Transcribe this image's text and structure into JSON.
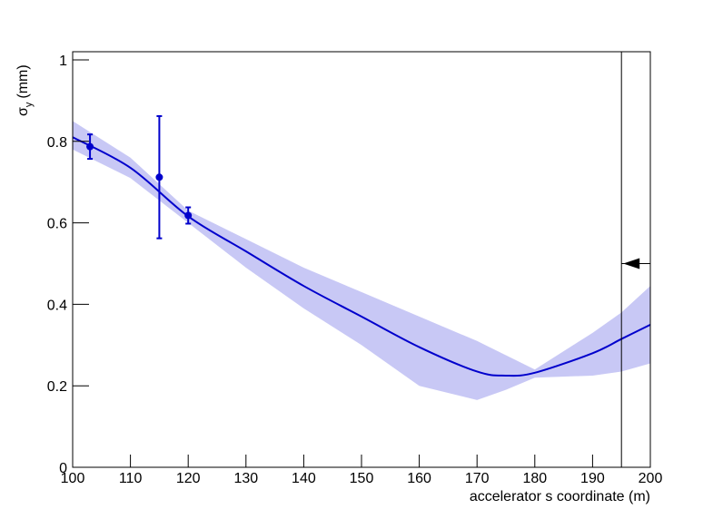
{
  "chart_data": {
    "type": "line",
    "x_label": "accelerator s coordinate (m)",
    "y_label": {
      "symbol": "σ",
      "subscript": "y",
      "unit": "(mm)"
    },
    "xlim": [
      100,
      200
    ],
    "ylim": [
      0,
      1.02
    ],
    "xticks": [
      100,
      110,
      120,
      130,
      140,
      150,
      160,
      170,
      180,
      190,
      200
    ],
    "yticks": [
      0,
      0.2,
      0.4,
      0.6,
      0.8,
      1
    ],
    "fit": {
      "color": "#0000cc",
      "band_color": "#c8c8f5",
      "x": [
        100,
        110,
        120,
        130,
        140,
        150,
        160,
        170,
        175,
        180,
        190,
        195,
        200
      ],
      "values": [
        0.81,
        0.735,
        0.616,
        0.53,
        0.445,
        0.37,
        0.295,
        0.235,
        0.225,
        0.232,
        0.28,
        0.315,
        0.35
      ],
      "upper": [
        0.85,
        0.76,
        0.63,
        0.56,
        0.49,
        0.43,
        0.37,
        0.31,
        0.275,
        0.24,
        0.33,
        0.38,
        0.445
      ],
      "lower": [
        0.78,
        0.71,
        0.6,
        0.49,
        0.39,
        0.3,
        0.2,
        0.165,
        0.19,
        0.22,
        0.225,
        0.235,
        0.255
      ]
    },
    "points": {
      "color": "#0000cc",
      "x": [
        103,
        115,
        120
      ],
      "values": [
        0.787,
        0.712,
        0.618
      ],
      "errors": [
        0.03,
        0.15,
        0.02
      ]
    },
    "cut_x": 195,
    "arrow_y": 0.5
  }
}
